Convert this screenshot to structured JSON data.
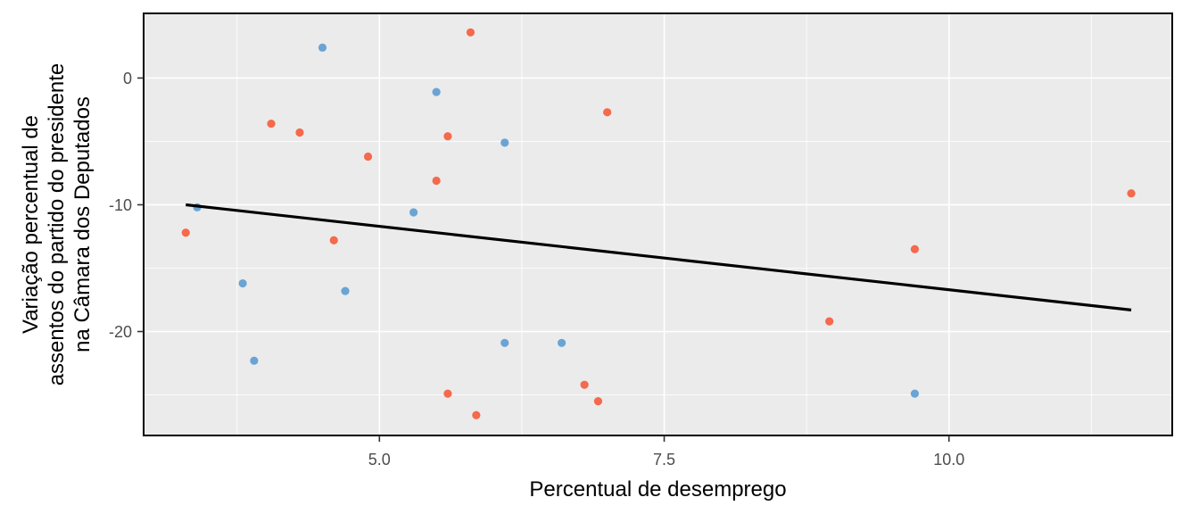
{
  "chart_data": {
    "type": "scatter",
    "title": "",
    "xlabel": "Percentual de desemprego",
    "ylabel_lines": [
      "Variação percentual de",
      "assentos do partido do presidente",
      "na Câmara dos Deputados"
    ],
    "xlim": [
      2.93,
      11.96
    ],
    "ylim": [
      -28.2,
      5.1
    ],
    "x_ticks": [
      5.0,
      7.5,
      10.0
    ],
    "x_tick_labels": [
      "5.0",
      "7.5",
      "10.0"
    ],
    "x_minor_ticks": [
      3.75,
      6.25,
      8.75,
      11.25
    ],
    "y_ticks": [
      0,
      -10,
      -20
    ],
    "y_tick_labels": [
      "0",
      "-10",
      "-20"
    ],
    "y_minor_ticks": [
      -5,
      -15,
      -25
    ],
    "grid": true,
    "legend": "none",
    "colors": {
      "panel": "#ebebeb",
      "grid": "#ffffff",
      "series_blue": "#6aa4d4",
      "series_red": "#f5694c",
      "fit_line": "#000000",
      "border": "#000000"
    },
    "series": [
      {
        "color": "#6aa4d4",
        "points": [
          {
            "x": 4.5,
            "y": 2.4
          },
          {
            "x": 5.5,
            "y": -1.1
          },
          {
            "x": 6.1,
            "y": -5.1
          },
          {
            "x": 5.3,
            "y": -10.6
          },
          {
            "x": 3.4,
            "y": -10.2
          },
          {
            "x": 3.8,
            "y": -16.2
          },
          {
            "x": 4.7,
            "y": -16.8
          },
          {
            "x": 3.9,
            "y": -22.3
          },
          {
            "x": 6.1,
            "y": -20.9
          },
          {
            "x": 6.6,
            "y": -20.9
          },
          {
            "x": 9.7,
            "y": -24.9
          }
        ]
      },
      {
        "color": "#f5694c",
        "points": [
          {
            "x": 5.8,
            "y": 3.6
          },
          {
            "x": 7.0,
            "y": -2.7
          },
          {
            "x": 4.05,
            "y": -3.6
          },
          {
            "x": 4.3,
            "y": -4.3
          },
          {
            "x": 5.6,
            "y": -4.6
          },
          {
            "x": 4.9,
            "y": -6.2
          },
          {
            "x": 5.5,
            "y": -8.1
          },
          {
            "x": 3.3,
            "y": -12.2
          },
          {
            "x": 4.6,
            "y": -12.8
          },
          {
            "x": 11.6,
            "y": -9.1
          },
          {
            "x": 9.7,
            "y": -13.5
          },
          {
            "x": 8.95,
            "y": -19.2
          },
          {
            "x": 5.6,
            "y": -24.9
          },
          {
            "x": 5.85,
            "y": -26.6
          },
          {
            "x": 6.8,
            "y": -24.2
          },
          {
            "x": 6.92,
            "y": -25.5
          }
        ]
      }
    ],
    "fit_line": {
      "x": [
        3.3,
        11.6
      ],
      "y": [
        -10.0,
        -18.3
      ]
    }
  }
}
